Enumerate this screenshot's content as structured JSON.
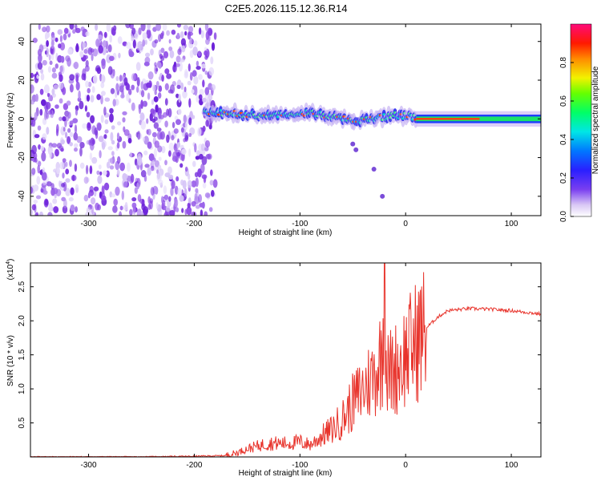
{
  "title": "C2E5.2026.115.12.36.R14",
  "chart_data": [
    {
      "type": "heatmap",
      "title": "C2E5.2026.115.12.36.R14",
      "xlabel": "Height of straight line (km)",
      "ylabel": "Frequency (Hz)",
      "xlim": [
        -355,
        128
      ],
      "ylim": [
        -50,
        49
      ],
      "x_ticks": [
        -300,
        -200,
        -100,
        0,
        100
      ],
      "x_tick_labels": [
        "-300",
        "-200",
        "-100",
        "0",
        "100"
      ],
      "y_ticks": [
        -40,
        -20,
        0,
        20,
        40
      ],
      "y_tick_labels": [
        "-40",
        "-20",
        "0",
        "20",
        "40"
      ],
      "colorbar": {
        "label": "Normalized spectral amplitude",
        "range": [
          0,
          1
        ],
        "ticks": [
          0.0,
          0.2,
          0.4,
          0.6,
          0.8
        ],
        "tick_labels": [
          "0.0",
          "0.2",
          "0.4",
          "0.6",
          "0.8"
        ]
      },
      "description_segments": [
        {
          "x_from": -355,
          "x_to": -180,
          "pattern": "broadband noise",
          "level": 0.15
        },
        {
          "x_from": -190,
          "x_to": 10,
          "pattern": "narrow band near 0 Hz",
          "center_hz": [
            3,
            3,
            2,
            2,
            3,
            3,
            1,
            -1,
            0,
            2,
            1
          ],
          "level": 0.6
        },
        {
          "x_from": 10,
          "x_to": 128,
          "pattern": "stable carrier at 0 Hz",
          "center_hz": 0,
          "level": 0.9
        }
      ]
    },
    {
      "type": "line",
      "xlabel": "Height of straight line (km)",
      "ylabel": "SNR (10 * v/v)",
      "y_scale_label": "(x10",
      "y_scale_exp": "4",
      "xlim": [
        -355,
        128
      ],
      "ylim": [
        0,
        2.85
      ],
      "x_ticks": [
        -300,
        -200,
        -100,
        0,
        100
      ],
      "x_tick_labels": [
        "-300",
        "-200",
        "-100",
        "0",
        "100"
      ],
      "y_ticks": [
        0.5,
        1.0,
        1.5,
        2.0,
        2.5
      ],
      "y_tick_labels": [
        "0.5",
        "1.0",
        "1.5",
        "2.0",
        "2.5"
      ],
      "series": [
        {
          "name": "SNR",
          "color": "#e8342c",
          "x": [
            -355,
            -300,
            -250,
            -200,
            -170,
            -160,
            -150,
            -140,
            -130,
            -120,
            -110,
            -100,
            -90,
            -80,
            -70,
            -60,
            -50,
            -40,
            -30,
            -22,
            -20,
            -18,
            -10,
            0,
            10,
            20,
            30,
            40,
            60,
            80,
            100,
            128
          ],
          "y": [
            0.0,
            0.0,
            0.0,
            0.01,
            0.02,
            0.06,
            0.12,
            0.16,
            0.2,
            0.2,
            0.2,
            0.22,
            0.18,
            0.3,
            0.4,
            0.55,
            0.8,
            1.0,
            1.2,
            1.5,
            2.8,
            1.2,
            1.3,
            1.5,
            1.7,
            1.9,
            2.05,
            2.15,
            2.18,
            2.17,
            2.15,
            2.1
          ]
        }
      ]
    }
  ]
}
